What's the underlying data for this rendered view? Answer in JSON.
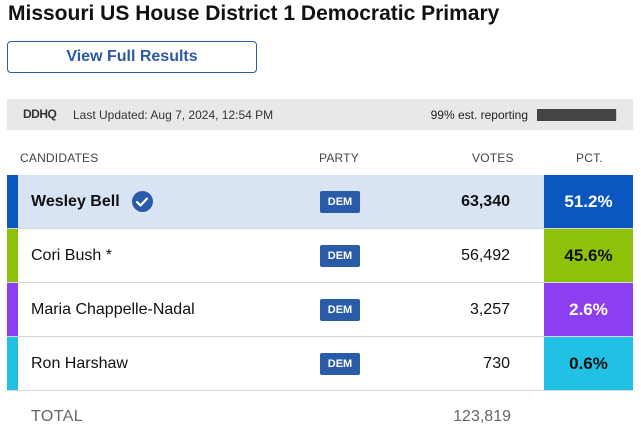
{
  "title": "Missouri US House District 1 Democratic Primary",
  "view_button": "View Full Results",
  "meta": {
    "logo": "DDHQ",
    "last_updated": "Last Updated: Aug 7, 2024, 12:54 PM",
    "reporting_text": "99% est. reporting",
    "reporting_fraction": 0.99
  },
  "headers": {
    "candidates": "CANDIDATES",
    "party": "PARTY",
    "votes": "VOTES",
    "pct": "PCT."
  },
  "candidates": [
    {
      "name": "Wesley Bell",
      "party": "DEM",
      "votes": "63,340",
      "pct": "51.2%",
      "winner": true,
      "color": "#0a57c2",
      "pct_text_color": "#ffffff"
    },
    {
      "name": "Cori Bush *",
      "party": "DEM",
      "votes": "56,492",
      "pct": "45.6%",
      "winner": false,
      "color": "#8dc10a",
      "pct_text_color": "#111111"
    },
    {
      "name": "Maria Chappelle-Nadal",
      "party": "DEM",
      "votes": "3,257",
      "pct": "2.6%",
      "winner": false,
      "color": "#8c3ff0",
      "pct_text_color": "#ffffff"
    },
    {
      "name": "Ron Harshaw",
      "party": "DEM",
      "votes": "730",
      "pct": "0.6%",
      "winner": false,
      "color": "#21c1e6",
      "pct_text_color": "#111111"
    }
  ],
  "total": {
    "label": "TOTAL",
    "votes": "123,819"
  },
  "icons": {
    "winner": "checkmark-circle-icon"
  }
}
